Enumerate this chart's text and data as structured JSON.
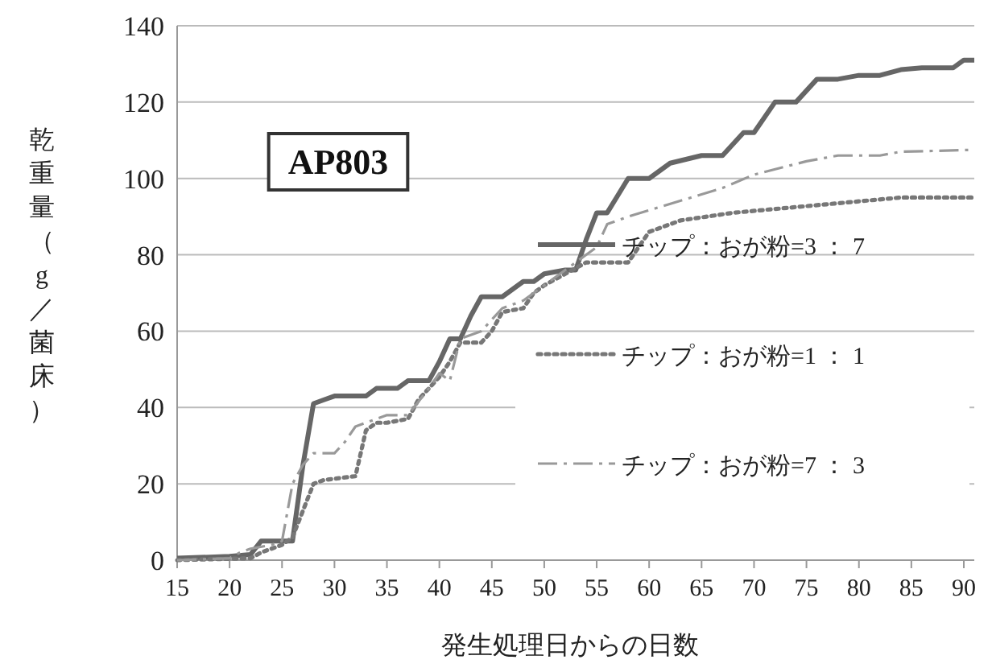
{
  "chart_data": {
    "type": "line",
    "xlabel": "発生処理日からの日数",
    "ylabel": "乾重量（g／菌床）",
    "annotations": [
      "AP803"
    ],
    "xlim": [
      15,
      91
    ],
    "xticks": [
      15,
      20,
      25,
      30,
      35,
      40,
      45,
      50,
      55,
      60,
      65,
      70,
      75,
      80,
      85,
      90
    ],
    "ylim": [
      0,
      140
    ],
    "yticks": [
      0,
      20,
      40,
      60,
      80,
      100,
      120,
      140
    ],
    "grid": "y",
    "legend": "right",
    "marker": "none",
    "series": [
      {
        "name": "チップ：おが粉=3 ： 7",
        "color": "#666666",
        "line_style": "solid",
        "x": [
          15,
          20,
          22,
          23,
          25,
          26,
          27,
          28,
          29,
          30,
          33,
          34,
          36,
          37,
          39,
          40,
          41,
          42,
          43,
          44,
          46,
          47,
          48,
          49,
          50,
          52,
          53,
          54,
          55,
          56,
          58,
          60,
          62,
          65,
          67,
          69,
          70,
          72,
          74,
          76,
          78,
          80,
          82,
          84,
          86,
          89,
          90,
          91
        ],
        "values": [
          0.5,
          1,
          1.5,
          5,
          5,
          5,
          25,
          41,
          42,
          43,
          43,
          45,
          45,
          47,
          47,
          52,
          58,
          58,
          64,
          69,
          69,
          71,
          73,
          73,
          75,
          76,
          76,
          84,
          91,
          91,
          100,
          100,
          104,
          106,
          106,
          112,
          112,
          120,
          120,
          126,
          126,
          127,
          127,
          128.5,
          129,
          129,
          131,
          131
        ]
      },
      {
        "name": "チップ：おが粉=1 ： 1",
        "color": "#777777",
        "line_style": "dotted",
        "x": [
          15,
          22,
          23,
          25,
          26,
          27,
          28,
          29,
          32,
          33,
          34,
          35,
          37,
          38,
          40,
          41,
          42,
          44,
          45,
          46,
          48,
          49,
          50,
          52,
          54,
          58,
          60,
          63,
          68,
          72,
          80,
          84,
          91
        ],
        "values": [
          0,
          0.5,
          2,
          4,
          6,
          13,
          20,
          21,
          22,
          34,
          36,
          36,
          37,
          42,
          48,
          52,
          57,
          57,
          60,
          65,
          66,
          70,
          72,
          75,
          78,
          78,
          86,
          89,
          91,
          92,
          94,
          95,
          95
        ]
      },
      {
        "name": "チップ：おが粉=7 ： 3",
        "color": "#999999",
        "line_style": "dashdot",
        "x": [
          15,
          20,
          21,
          22,
          24,
          25,
          26,
          27,
          28,
          30,
          31,
          32,
          35,
          37,
          39,
          40,
          41,
          42,
          44,
          45,
          46,
          48,
          50,
          52,
          54,
          55,
          56,
          58,
          64,
          67,
          70,
          75,
          78,
          82,
          84,
          91
        ],
        "values": [
          0,
          0.5,
          2,
          3,
          4,
          5,
          20,
          25,
          28,
          28,
          31,
          35,
          38,
          38,
          45,
          49,
          47,
          58,
          60,
          63,
          66,
          68,
          72,
          76,
          80,
          82,
          88,
          90,
          95,
          97.5,
          101,
          104.5,
          106,
          106,
          107,
          107.5
        ]
      }
    ]
  }
}
